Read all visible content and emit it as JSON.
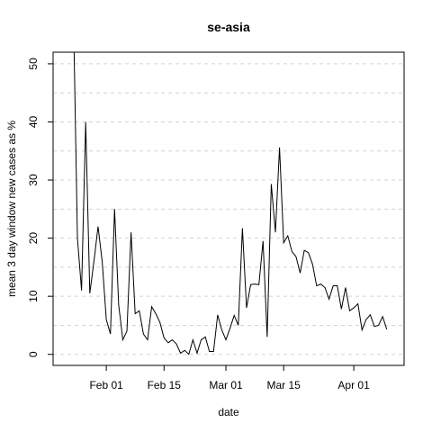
{
  "chart_data": {
    "type": "line",
    "title": "se-asia",
    "xlabel": "date",
    "ylabel": "mean  3  day window new cases as %",
    "x": [
      23,
      24,
      25,
      26,
      27,
      28,
      29,
      30,
      31,
      32,
      33,
      34,
      35,
      36,
      37,
      38,
      39,
      40,
      41,
      42,
      43,
      44,
      45,
      46,
      47,
      48,
      49,
      50,
      51,
      52,
      53,
      54,
      55,
      56,
      57,
      58,
      59,
      60,
      61,
      62,
      63,
      64,
      65,
      66,
      67,
      68,
      69,
      70,
      71,
      72,
      73,
      74,
      75,
      76,
      77,
      78,
      79,
      80,
      81,
      82,
      83,
      84,
      85,
      86,
      87,
      88,
      89,
      90,
      91,
      92,
      93,
      94,
      95,
      96,
      97,
      98,
      99
    ],
    "series": [
      {
        "color": "#000000",
        "values": [
          60,
          20,
          11,
          40,
          10.5,
          16,
          22,
          16,
          6,
          3.5,
          25,
          8.5,
          2.5,
          4,
          21,
          7,
          7.5,
          3.5,
          2.5,
          8.2,
          7,
          5.5,
          2.8,
          2,
          2.5,
          1.8,
          0.2,
          0.7,
          0,
          2.5,
          0.2,
          2.5,
          3,
          0.5,
          0.5,
          6.8,
          4.2,
          2.5,
          4.5,
          6.7,
          5,
          21.7,
          8,
          12,
          12.1,
          12,
          19.5,
          3,
          29.3,
          21,
          35.6,
          19.2,
          20.4,
          17.7,
          16.8,
          14,
          17.9,
          17.5,
          15.5,
          11.8,
          12.1,
          11.5,
          9.5,
          11.8,
          11.8,
          7.8,
          11.5,
          7.5,
          8,
          8.7,
          4.2,
          6,
          6.8,
          4.8,
          5,
          6.5,
          4.3
        ]
      }
    ],
    "xlim": [
      18.1,
      103.2
    ],
    "xticks": [
      {
        "value": 31,
        "label": "Feb 01"
      },
      {
        "value": 45,
        "label": "Feb 15"
      },
      {
        "value": 60,
        "label": "Mar 01"
      },
      {
        "value": 74,
        "label": "Mar 15"
      },
      {
        "value": 91,
        "label": "Apr 01"
      }
    ],
    "ylim": [
      -1.9,
      52
    ],
    "yticks": [
      0,
      10,
      20,
      30,
      40,
      50
    ],
    "ygrid": [
      0,
      5,
      10,
      15,
      20,
      25,
      30,
      35,
      40,
      45,
      50
    ],
    "grid": true
  }
}
